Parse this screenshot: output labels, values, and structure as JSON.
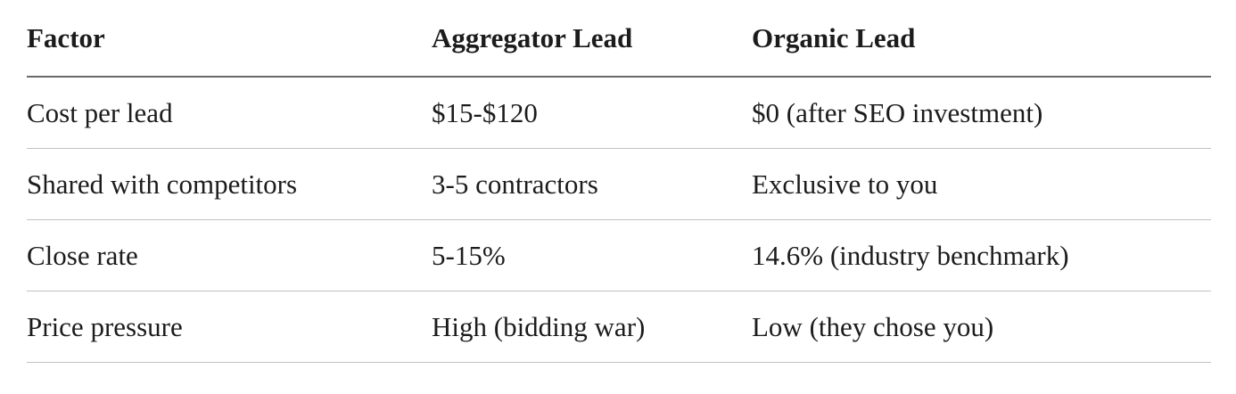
{
  "table": {
    "columns": [
      {
        "label": "Factor"
      },
      {
        "label": "Aggregator Lead"
      },
      {
        "label": "Organic Lead"
      }
    ],
    "rows": [
      {
        "factor": "Cost per lead",
        "aggregator": "$15-$120",
        "organic": "$0 (after SEO investment)"
      },
      {
        "factor": "Shared with competitors",
        "aggregator": "3-5 contractors",
        "organic": "Exclusive to you"
      },
      {
        "factor": "Close rate",
        "aggregator": "5-15%",
        "organic": "14.6% (industry benchmark)"
      },
      {
        "factor": "Price pressure",
        "aggregator": "High (bidding war)",
        "organic": "Low (they chose you)"
      }
    ]
  },
  "colors": {
    "background": "#ffffff",
    "text": "#1c1c1c",
    "header_rule": "#696969",
    "row_rule": "#c2c2c2"
  },
  "chart_data": {
    "type": "table",
    "columns": [
      "Factor",
      "Aggregator Lead",
      "Organic Lead"
    ],
    "rows": [
      [
        "Cost per lead",
        "$15-$120",
        "$0 (after SEO investment)"
      ],
      [
        "Shared with competitors",
        "3-5 contractors",
        "Exclusive to you"
      ],
      [
        "Close rate",
        "5-15%",
        "14.6% (industry benchmark)"
      ],
      [
        "Price pressure",
        "High (bidding war)",
        "Low (they chose you)"
      ]
    ]
  }
}
